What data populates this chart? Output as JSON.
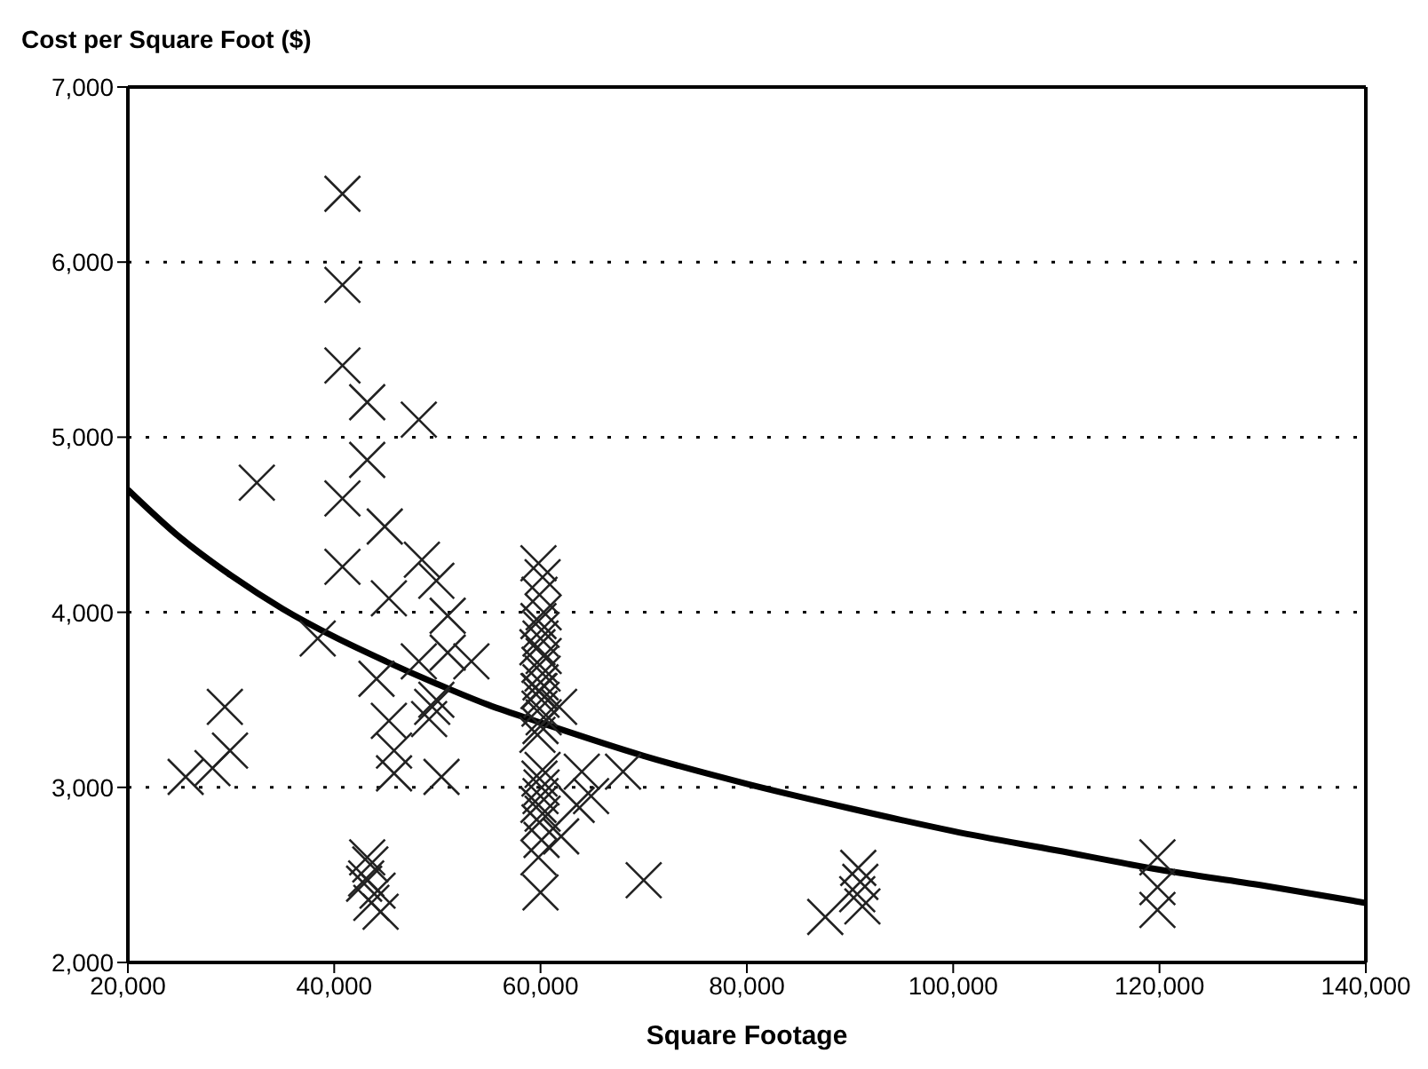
{
  "chart_data": {
    "type": "scatter",
    "xlabel": "Square Footage",
    "ylabel": "Cost per Square Foot ($)",
    "xlim": [
      20000,
      140000
    ],
    "xticks": [
      {
        "value": 20000,
        "label": "20,000"
      },
      {
        "value": 40000,
        "label": "40,000"
      },
      {
        "value": 60000,
        "label": "60,000"
      },
      {
        "value": 80000,
        "label": "80,000"
      },
      {
        "value": 100000,
        "label": "100,000"
      },
      {
        "value": 120000,
        "label": "120,000"
      },
      {
        "value": 140000,
        "label": "140,000"
      }
    ],
    "ylim": [
      2000,
      7000
    ],
    "yticks": [
      {
        "value": 2000,
        "label": "2,000"
      },
      {
        "value": 3000,
        "label": "3,000"
      },
      {
        "value": 4000,
        "label": "4,000"
      },
      {
        "value": 5000,
        "label": "5,000"
      },
      {
        "value": 6000,
        "label": "6,000"
      },
      {
        "value": 7000,
        "label": "7,000"
      }
    ],
    "grid": "y",
    "series": [
      {
        "marker": "cross",
        "color": "#222222",
        "x": [
          25600,
          28200,
          29900,
          29400,
          32500,
          38400,
          40800,
          40800,
          40800,
          43200,
          48200,
          43200,
          40800,
          44900,
          40800,
          48500,
          49900,
          45300,
          51000,
          44100,
          48200,
          51000,
          53300,
          49500,
          45300,
          49200,
          49900,
          45800,
          45800,
          50400,
          43200,
          43500,
          43100,
          44200,
          43600,
          44500,
          42900,
          59800,
          60200,
          59900,
          60300,
          59800,
          60100,
          60000,
          59700,
          60300,
          59900,
          60200,
          60000,
          59800,
          60100,
          59900,
          60300,
          60000,
          59700,
          60200,
          59900,
          60100,
          60000,
          59800,
          60200,
          59900,
          60100,
          59800,
          60000,
          59900,
          61800,
          62000,
          63500,
          64000,
          64900,
          68000,
          70000,
          87600,
          90800,
          91000,
          90700,
          91200,
          119800,
          119800,
          119800
        ],
        "values": [
          3060,
          3110,
          3210,
          3460,
          4740,
          3850,
          6390,
          5870,
          5410,
          5200,
          5100,
          4870,
          4650,
          4490,
          4260,
          4300,
          4180,
          4080,
          3980,
          3620,
          3720,
          3770,
          3720,
          3460,
          3380,
          3390,
          3500,
          3210,
          3080,
          3060,
          2600,
          2560,
          2480,
          2410,
          2340,
          2290,
          2450,
          4280,
          4200,
          4100,
          4000,
          3950,
          3900,
          3850,
          3800,
          3750,
          3700,
          3650,
          3600,
          3550,
          3500,
          3450,
          3400,
          3350,
          3300,
          3100,
          3050,
          3000,
          2950,
          2900,
          2850,
          2800,
          2700,
          2600,
          2400,
          3550,
          3460,
          2720,
          2900,
          3090,
          2950,
          3090,
          2470,
          2260,
          2540,
          2460,
          2390,
          2320,
          2600,
          2430,
          2300
        ]
      },
      {
        "type": "line",
        "marker": "none",
        "color": "#000000",
        "x": [
          20000,
          25000,
          30000,
          35000,
          40000,
          45000,
          50000,
          55000,
          60000,
          70000,
          80000,
          90000,
          100000,
          110000,
          120000,
          130000,
          140000
        ],
        "values": [
          4700,
          4430,
          4210,
          4020,
          3860,
          3720,
          3590,
          3470,
          3370,
          3180,
          3020,
          2880,
          2750,
          2640,
          2530,
          2440,
          2340
        ]
      }
    ]
  }
}
